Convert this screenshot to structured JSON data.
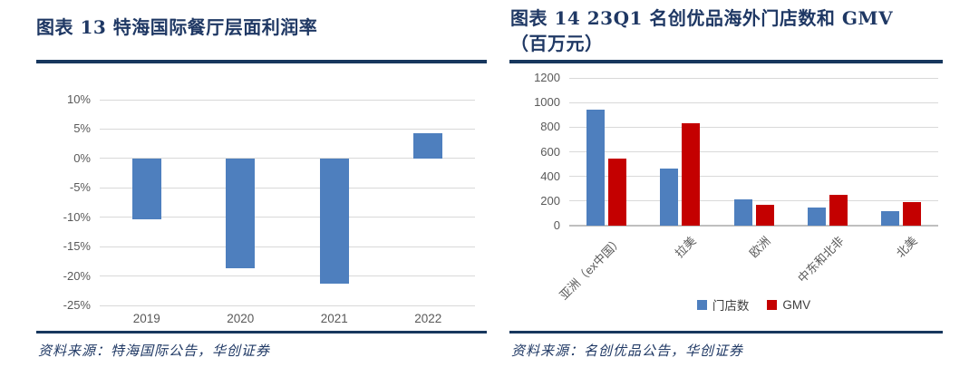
{
  "figures": {
    "left": {
      "title": "图表 13  特海国际餐厅层面利润率",
      "source": "资料来源：特海国际公告，华创证券"
    },
    "right": {
      "title": "图表 14  23Q1 名创优品海外门店数和 GMV（百万元）",
      "source": "资料来源：名创优品公告，华创证券"
    }
  },
  "colors": {
    "navy_rule": "#17375e",
    "title_text": "#1f3864",
    "bar_blue": "#4e7fbe",
    "bar_red": "#c40000",
    "gridline": "#d9d9d9",
    "tick_text": "#595959"
  },
  "chart_data": [
    {
      "id": "fig13",
      "type": "bar",
      "title": "特海国际餐厅层面利润率",
      "categories": [
        "2019",
        "2020",
        "2021",
        "2022"
      ],
      "values": [
        -10.4,
        -18.7,
        -21.3,
        4.3
      ],
      "xlabel": "",
      "ylabel": "",
      "ylim": [
        -25,
        10
      ],
      "ytick_step": 5,
      "tick_format": "percent",
      "grid": true,
      "legend_position": "none",
      "bar_color": "#4e7fbe"
    },
    {
      "id": "fig14",
      "type": "grouped-bar",
      "title": "23Q1 名创优品海外门店数和 GMV（百万元）",
      "categories": [
        "亚洲（ex中国）",
        "拉美",
        "欧洲",
        "中东和北非",
        "北美"
      ],
      "series": [
        {
          "name": "门店数",
          "color": "#4e7fbe",
          "values": [
            940,
            465,
            215,
            150,
            120
          ]
        },
        {
          "name": "GMV",
          "color": "#c40000",
          "values": [
            545,
            830,
            170,
            250,
            195
          ]
        }
      ],
      "xlabel": "",
      "ylabel": "",
      "ylim": [
        0,
        1200
      ],
      "ytick_step": 200,
      "tick_format": "number",
      "grid": true,
      "legend_position": "bottom"
    }
  ]
}
